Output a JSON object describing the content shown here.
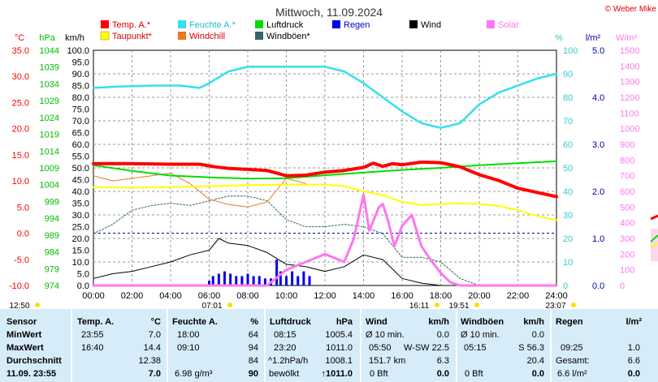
{
  "title": "Mittwoch, 11.09.2024",
  "copyright": "© Weber Mike",
  "legend": [
    {
      "label": "Temp. A.*",
      "color": "#ff0000"
    },
    {
      "label": "Feuchte A.*",
      "color": "#33e0ee"
    },
    {
      "label": "Luftdruck",
      "color": "#00dd00"
    },
    {
      "label": "Regen",
      "color": "#0000ee"
    },
    {
      "label": "Wind",
      "color": "#000000"
    },
    {
      "label": "Solar",
      "color": "#ff77ee"
    },
    {
      "label": "Taupunkt*",
      "color": "#ffff00"
    },
    {
      "label": "Windchill",
      "color": "#ee7722"
    },
    {
      "label": "Windböen*",
      "color": "#336666"
    }
  ],
  "axes": {
    "temp": {
      "unit": "°C",
      "color": "#ff0000",
      "ticks": [
        "35.0",
        "30.0",
        "25.0",
        "20.0",
        "15.0",
        "10.0",
        "5.0",
        "0.0",
        "-5.0",
        "-10.0"
      ]
    },
    "pressure": {
      "unit": "hPa",
      "color": "#00bb00",
      "ticks": [
        "1044",
        "1039",
        "1034",
        "1029",
        "1024",
        "1019",
        "1014",
        "1009",
        "1004",
        "999",
        "994",
        "989",
        "984",
        "979",
        "974"
      ]
    },
    "wind": {
      "unit": "km/h",
      "color": "#000000",
      "ticks": [
        "100.0",
        "95.0",
        "90.0",
        "85.0",
        "80.0",
        "75.0",
        "70.0",
        "65.0",
        "60.0",
        "55.0",
        "50.0",
        "45.0",
        "40.0",
        "35.0",
        "30.0",
        "25.0",
        "20.0",
        "15.0",
        "10.0",
        "5.0",
        "0.0"
      ]
    },
    "humidity": {
      "unit": "%",
      "color": "#33cccc",
      "ticks": [
        "100",
        "90",
        "80",
        "70",
        "60",
        "50",
        "40",
        "30",
        "20",
        "10",
        "0"
      ]
    },
    "rain": {
      "unit": "l/m²",
      "color": "#0000aa",
      "ticks": [
        "5.0",
        "4.0",
        "3.0",
        "2.0",
        "1.0",
        "0.0"
      ]
    },
    "solar": {
      "unit": "W/m²",
      "color": "#ff77ee",
      "ticks": [
        "1500",
        "1400",
        "1300",
        "1200",
        "1100",
        "1000",
        "900",
        "800",
        "700",
        "600",
        "500",
        "400",
        "300",
        "200",
        "100",
        "0"
      ]
    },
    "x_ticks": [
      "00:00",
      "02:00",
      "04:00",
      "06:00",
      "08:00",
      "10:00",
      "12:00",
      "14:00",
      "16:00",
      "18:00",
      "20:00",
      "22:00",
      "24:00"
    ]
  },
  "sun_markers": [
    "12:50",
    "07:01",
    "16:11",
    "19:51",
    "23:07"
  ],
  "chart_data": {
    "type": "line",
    "title": "Mittwoch, 11.09.2024",
    "x_unit": "hour of day",
    "xlim": [
      0,
      24
    ],
    "series": [
      {
        "name": "Temp. A.*",
        "axis": "°C",
        "ylim": [
          -10,
          35
        ],
        "points": [
          [
            0,
            13.3
          ],
          [
            2,
            13.3
          ],
          [
            4,
            13.2
          ],
          [
            5.5,
            13.2
          ],
          [
            6.3,
            12.7
          ],
          [
            7,
            12.4
          ],
          [
            8,
            12.2
          ],
          [
            9,
            12.0
          ],
          [
            10,
            11.0
          ],
          [
            11,
            11.1
          ],
          [
            12,
            11.7
          ],
          [
            13,
            12.0
          ],
          [
            14,
            12.6
          ],
          [
            14.5,
            13.4
          ],
          [
            15,
            12.8
          ],
          [
            15.5,
            13.3
          ],
          [
            16,
            13.1
          ],
          [
            17,
            13.6
          ],
          [
            18,
            13.5
          ],
          [
            19,
            12.7
          ],
          [
            20,
            11.2
          ],
          [
            21,
            10.1
          ],
          [
            22,
            8.6
          ],
          [
            23,
            7.8
          ],
          [
            24,
            7.0
          ]
        ]
      },
      {
        "name": "Feuchte A.*",
        "axis": "%",
        "ylim": [
          0,
          100
        ],
        "points": [
          [
            0,
            84
          ],
          [
            1,
            84.5
          ],
          [
            3,
            85
          ],
          [
            4.5,
            85
          ],
          [
            5.5,
            84
          ],
          [
            6,
            86
          ],
          [
            7,
            91
          ],
          [
            8,
            93
          ],
          [
            9,
            93
          ],
          [
            10,
            93
          ],
          [
            11,
            93
          ],
          [
            12,
            93
          ],
          [
            13,
            91
          ],
          [
            14,
            86
          ],
          [
            15,
            80
          ],
          [
            16,
            74
          ],
          [
            17,
            69
          ],
          [
            18,
            67
          ],
          [
            19,
            69
          ],
          [
            20,
            77
          ],
          [
            21,
            82
          ],
          [
            22,
            85
          ],
          [
            23,
            88
          ],
          [
            24,
            90
          ]
        ]
      },
      {
        "name": "Luftdruck",
        "axis": "hPa",
        "ylim": [
          974,
          1044
        ],
        "points": [
          [
            0,
            1009.8
          ],
          [
            2,
            1008.1
          ],
          [
            4,
            1006.7
          ],
          [
            6,
            1006.2
          ],
          [
            8,
            1005.8
          ],
          [
            10,
            1005.9
          ],
          [
            12,
            1006.8
          ],
          [
            14,
            1007.6
          ],
          [
            16,
            1008.4
          ],
          [
            18,
            1009.0
          ],
          [
            20,
            1009.8
          ],
          [
            22,
            1010.4
          ],
          [
            24,
            1011.0
          ]
        ]
      },
      {
        "name": "Taupunkt*",
        "axis": "°C",
        "ylim": [
          -10,
          35
        ],
        "points": [
          [
            0,
            8.8
          ],
          [
            2,
            8.7
          ],
          [
            4,
            8.8
          ],
          [
            6,
            9.0
          ],
          [
            8,
            9.2
          ],
          [
            10,
            9.3
          ],
          [
            12,
            9.3
          ],
          [
            13,
            9.0
          ],
          [
            14,
            8.0
          ],
          [
            15,
            7.3
          ],
          [
            16,
            6.0
          ],
          [
            17,
            5.4
          ],
          [
            18,
            5.6
          ],
          [
            19,
            5.7
          ],
          [
            20,
            5.6
          ],
          [
            21,
            5.2
          ],
          [
            22,
            4.4
          ],
          [
            23,
            3.3
          ],
          [
            24,
            2.5
          ]
        ]
      },
      {
        "name": "Windchill",
        "axis": "°C",
        "ylim": [
          -10,
          35
        ],
        "points": [
          [
            0,
            11.0
          ],
          [
            1,
            10.0
          ],
          [
            2,
            10.5
          ],
          [
            3,
            11.0
          ],
          [
            4,
            11.5
          ],
          [
            5,
            9.5
          ],
          [
            6,
            6.5
          ],
          [
            7,
            5.5
          ],
          [
            8,
            5.0
          ],
          [
            9,
            6.0
          ],
          [
            10,
            10.5
          ],
          [
            11,
            9.5
          ]
        ]
      },
      {
        "name": "Wind",
        "axis": "km/h",
        "ylim": [
          0,
          100
        ],
        "points": [
          [
            0,
            3
          ],
          [
            1,
            5
          ],
          [
            2,
            6
          ],
          [
            3,
            8
          ],
          [
            4,
            10
          ],
          [
            5,
            13
          ],
          [
            6,
            15
          ],
          [
            6.5,
            20
          ],
          [
            7,
            18
          ],
          [
            8,
            17
          ],
          [
            9,
            14
          ],
          [
            10,
            9
          ],
          [
            11,
            8
          ],
          [
            12,
            6
          ],
          [
            13,
            8
          ],
          [
            14,
            13
          ],
          [
            15,
            11
          ],
          [
            16,
            3
          ],
          [
            17,
            1
          ],
          [
            18,
            0
          ],
          [
            24,
            0
          ]
        ]
      },
      {
        "name": "Windböen*",
        "axis": "km/h",
        "ylim": [
          0,
          100
        ],
        "points": [
          [
            0,
            22
          ],
          [
            1,
            26
          ],
          [
            2,
            32
          ],
          [
            3,
            34
          ],
          [
            4,
            35
          ],
          [
            5,
            34
          ],
          [
            6,
            36
          ],
          [
            7,
            38
          ],
          [
            8,
            38
          ],
          [
            9,
            36
          ],
          [
            10,
            28
          ],
          [
            11,
            25
          ],
          [
            12,
            25
          ],
          [
            13,
            26
          ],
          [
            14,
            25
          ],
          [
            15,
            22
          ],
          [
            16,
            12
          ],
          [
            17,
            12
          ],
          [
            18,
            10
          ],
          [
            19,
            3
          ],
          [
            20,
            0
          ],
          [
            24,
            0
          ]
        ]
      },
      {
        "name": "Solar",
        "axis": "W/m²",
        "ylim": [
          0,
          1500
        ],
        "points": [
          [
            0,
            0
          ],
          [
            7,
            0
          ],
          [
            9,
            0
          ],
          [
            10,
            100
          ],
          [
            11,
            150
          ],
          [
            12,
            200
          ],
          [
            13,
            150
          ],
          [
            13.5,
            300
          ],
          [
            14,
            580
          ],
          [
            14.3,
            350
          ],
          [
            14.8,
            500
          ],
          [
            15,
            520
          ],
          [
            15.3,
            400
          ],
          [
            15.6,
            250
          ],
          [
            16,
            380
          ],
          [
            16.5,
            450
          ],
          [
            17,
            250
          ],
          [
            17.5,
            160
          ],
          [
            18,
            80
          ],
          [
            18.5,
            20
          ],
          [
            19,
            0
          ],
          [
            24,
            0
          ]
        ]
      },
      {
        "name": "Regen",
        "axis": "l/m²",
        "type": "bar",
        "ylim": [
          0,
          5
        ],
        "points": [
          [
            6.0,
            0.1
          ],
          [
            6.2,
            0.2
          ],
          [
            6.5,
            0.25
          ],
          [
            6.8,
            0.3
          ],
          [
            7.1,
            0.25
          ],
          [
            7.4,
            0.2
          ],
          [
            7.7,
            0.2
          ],
          [
            8.0,
            0.25
          ],
          [
            8.3,
            0.2
          ],
          [
            8.6,
            0.2
          ],
          [
            8.9,
            0.15
          ],
          [
            9.2,
            0.15
          ],
          [
            9.5,
            0.55
          ],
          [
            9.7,
            0.3
          ],
          [
            10,
            0.2
          ],
          [
            10.3,
            0.3
          ],
          [
            10.6,
            0.2
          ],
          [
            10.9,
            0.3
          ],
          [
            11.2,
            0.2
          ]
        ]
      }
    ],
    "reference_lines": [
      {
        "axis": "°C",
        "value": 0,
        "style": "dashed",
        "color": "#0000aa"
      }
    ]
  },
  "stats": {
    "header": [
      "Sensor",
      "Temp. A.",
      "°C",
      "Feuchte A.",
      "%",
      "Luftdruck",
      "hPa",
      "Wind",
      "km/h",
      "Windböen",
      "km/h",
      "Regen",
      "l/m²"
    ],
    "rows": [
      {
        "label": "MinWert",
        "temp_time": "23:55",
        "temp_val": "7.0",
        "hum_time": "18:00",
        "hum_val": "64",
        "press_time": "08:15",
        "press_val": "1005.4",
        "wind_time": "Ø 10 min.",
        "wind_val": "0.0",
        "gust_time": "Ø 10 min.",
        "gust_val": "0.0",
        "rain_time": "",
        "rain_val": ""
      },
      {
        "label": "MaxWert",
        "temp_time": "16:40",
        "temp_val": "14.4",
        "hum_time": "09:10",
        "hum_val": "94",
        "press_time": "23:20",
        "press_val": "1011.0",
        "wind_time": "05:50",
        "wind_dir": "W-SW 22.5",
        "wind_val": "",
        "gust_time": "05:15",
        "gust_dir": "S 56.3",
        "gust_val": "",
        "rain_time": "09:25",
        "rain_val": "1.0"
      },
      {
        "label": "Durchschnitt",
        "temp_time": "",
        "temp_val": "12.38",
        "hum_time": "",
        "hum_val": "84",
        "press_time": "^1.2hPa/h",
        "press_val": "1008.1",
        "wind_time": "151.7 km",
        "wind_val": "6.3",
        "gust_time": "",
        "gust_val": "20.4",
        "rain_time": "Gesamt:",
        "rain_val": "6.6"
      },
      {
        "label": "11.09. 23:55",
        "temp_time": "",
        "temp_val": "7.0",
        "hum_time": "6.98 g/m³",
        "hum_val": "90",
        "press_time": "bewölkt",
        "press_val": "↑1011.0",
        "wind_time": "0 Bft",
        "wind_val": "0.0",
        "gust_time": "0 Bft",
        "gust_val": "0.0",
        "rain_time": "6.6 l/m²",
        "rain_val": "0.0"
      }
    ]
  }
}
